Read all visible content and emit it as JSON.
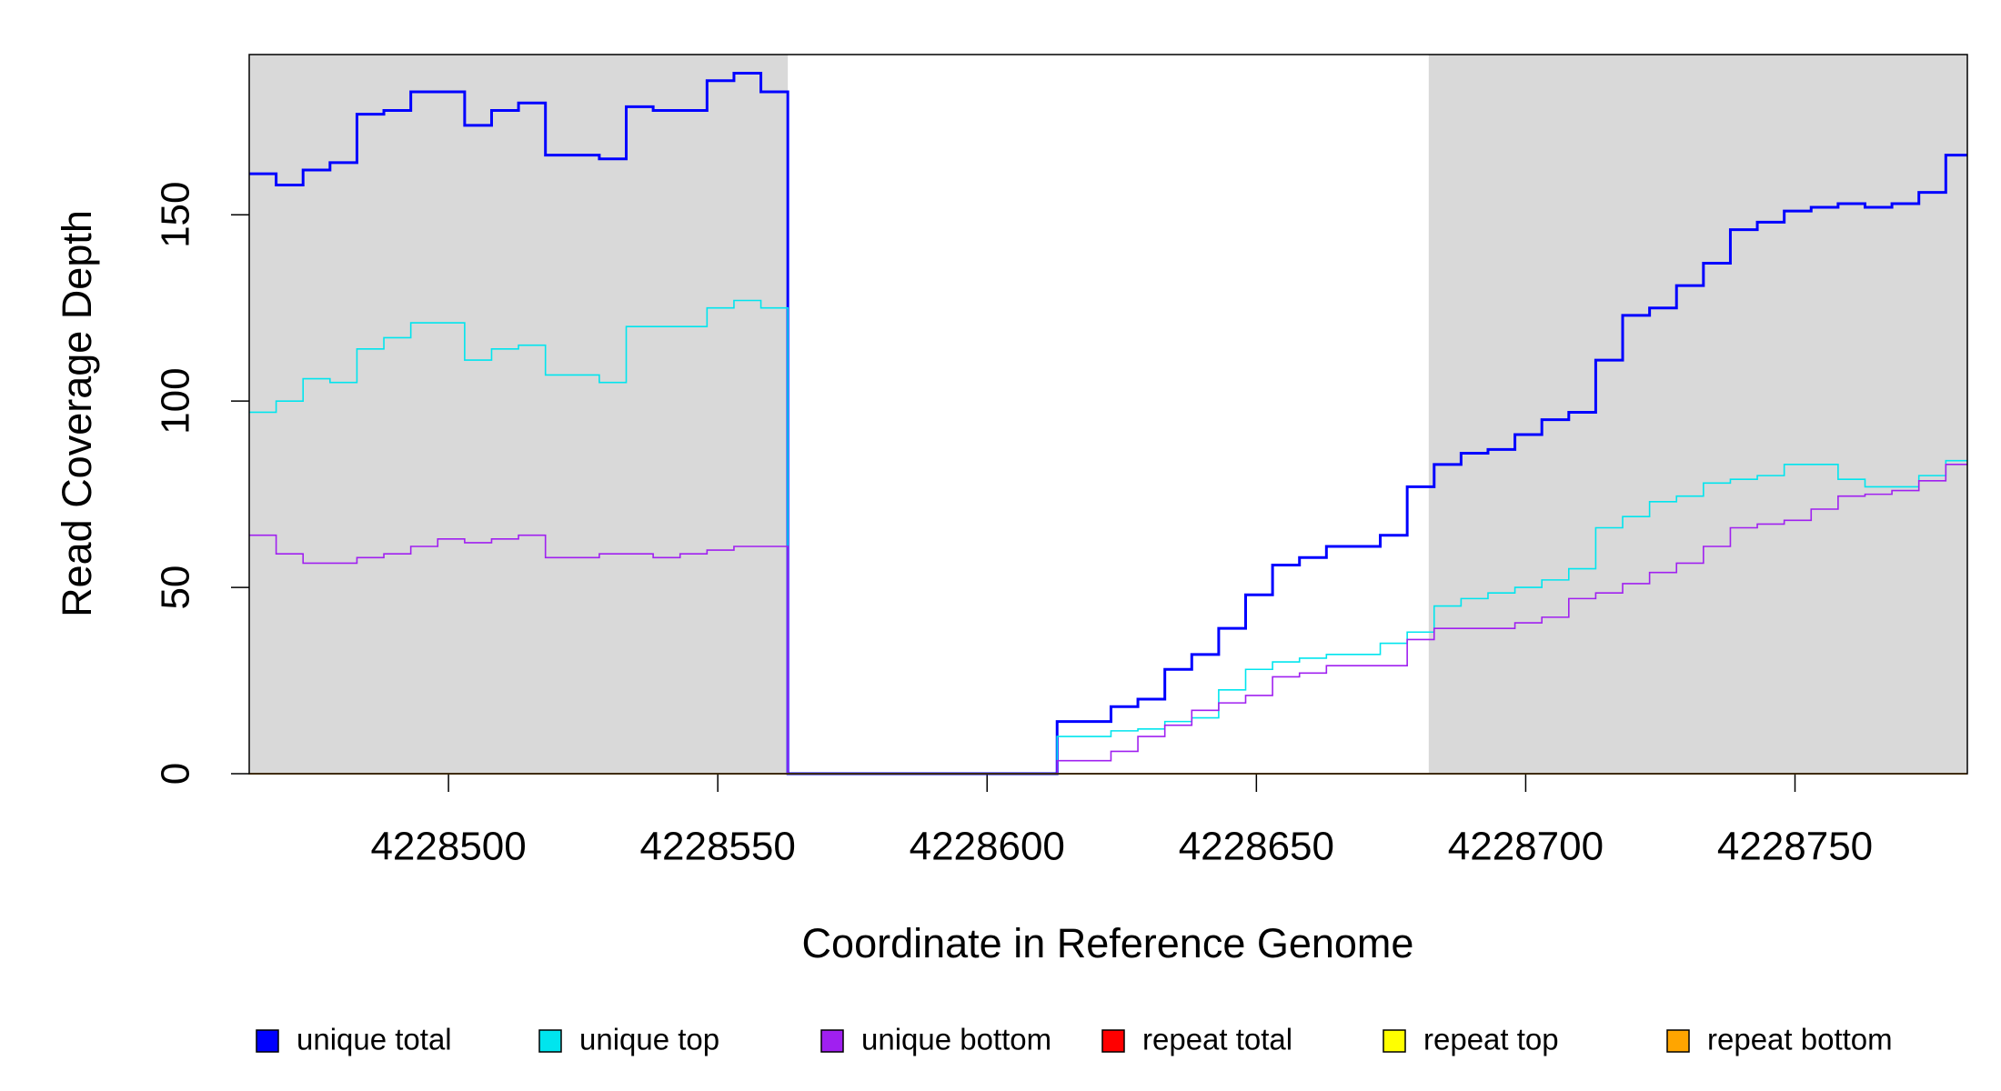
{
  "chart_data": {
    "type": "step",
    "xlabel": "Coordinate in Reference Genome",
    "ylabel": "Read Coverage Depth",
    "xlim": [
      4228463,
      4228782
    ],
    "ylim": [
      0,
      193
    ],
    "xticks": [
      4228500,
      4228550,
      4228600,
      4228650,
      4228700,
      4228750
    ],
    "yticks": [
      0,
      50,
      100,
      150
    ],
    "shaded_regions": [
      [
        4228463,
        4228563
      ],
      [
        4228682,
        4228782
      ]
    ],
    "shade_color": "#d9d9d9",
    "x": [
      4228463,
      4228468,
      4228473,
      4228478,
      4228483,
      4228488,
      4228493,
      4228498,
      4228503,
      4228508,
      4228513,
      4228518,
      4228523,
      4228528,
      4228533,
      4228538,
      4228543,
      4228548,
      4228553,
      4228558,
      4228563,
      4228568,
      4228573,
      4228578,
      4228583,
      4228588,
      4228593,
      4228598,
      4228603,
      4228608,
      4228613,
      4228618,
      4228623,
      4228628,
      4228633,
      4228638,
      4228643,
      4228648,
      4228653,
      4228658,
      4228663,
      4228668,
      4228673,
      4228678,
      4228683,
      4228688,
      4228693,
      4228698,
      4228703,
      4228708,
      4228713,
      4228718,
      4228723,
      4228728,
      4228733,
      4228738,
      4228743,
      4228748,
      4228753,
      4228758,
      4228763,
      4228768,
      4228773,
      4228778
    ],
    "series": [
      {
        "name": "unique total",
        "color": "#0000ff",
        "values": [
          161,
          158,
          162,
          164,
          177,
          178,
          183,
          183,
          174,
          178,
          180,
          166,
          166,
          165,
          179,
          178,
          178,
          186,
          188,
          183,
          0,
          0,
          0,
          0,
          0,
          0,
          0,
          0,
          0,
          0,
          14,
          14,
          18,
          20,
          28,
          32,
          39,
          48,
          56,
          58,
          61,
          61,
          64,
          77,
          83,
          86,
          87,
          91,
          95,
          97,
          111,
          123,
          125,
          131,
          137,
          146,
          148,
          151,
          152,
          153,
          152,
          153,
          156,
          166
        ]
      },
      {
        "name": "unique top",
        "color": "#00e5ee",
        "values": [
          97,
          100,
          106,
          105,
          114,
          117,
          121,
          121,
          111,
          114,
          115,
          107,
          107,
          105,
          120,
          120,
          120,
          125,
          127,
          125,
          0,
          0,
          0,
          0,
          0,
          0,
          0,
          0,
          0,
          0,
          10,
          10,
          11.5,
          12,
          14,
          15,
          22.5,
          28,
          30,
          31,
          32,
          32,
          35,
          38,
          45,
          47,
          48.5,
          50,
          52,
          55,
          66,
          69,
          73,
          74.5,
          78,
          79,
          80,
          83,
          83,
          79,
          77,
          77,
          80,
          84
        ]
      },
      {
        "name": "unique bottom",
        "color": "#a020f0",
        "values": [
          64,
          59,
          56.5,
          56.5,
          58,
          59,
          61,
          63,
          62,
          63,
          64,
          58,
          58,
          59,
          59,
          58,
          59,
          60,
          61,
          61,
          0,
          0,
          0,
          0,
          0,
          0,
          0,
          0,
          0,
          0,
          3.5,
          3.5,
          6,
          10,
          13,
          17,
          19,
          21,
          26,
          27,
          29,
          29,
          29,
          36,
          39,
          39,
          39,
          40.5,
          42,
          47,
          48.5,
          51,
          54,
          56.5,
          61,
          66,
          67,
          68,
          71,
          74.5,
          75,
          76,
          78.6,
          83
        ]
      },
      {
        "name": "repeat total",
        "color": "#ff0000",
        "values": [
          0,
          0,
          0,
          0,
          0,
          0,
          0,
          0,
          0,
          0,
          0,
          0,
          0,
          0,
          0,
          0,
          0,
          0,
          0,
          0,
          0,
          0,
          0,
          0,
          0,
          0,
          0,
          0,
          0,
          0,
          0,
          0,
          0,
          0,
          0,
          0,
          0,
          0,
          0,
          0,
          0,
          0,
          0,
          0,
          0,
          0,
          0,
          0,
          0,
          0,
          0,
          0,
          0,
          0,
          0,
          0,
          0,
          0,
          0,
          0,
          0,
          0,
          0,
          0
        ]
      },
      {
        "name": "repeat top",
        "color": "#ffff00",
        "values": [
          0,
          0,
          0,
          0,
          0,
          0,
          0,
          0,
          0,
          0,
          0,
          0,
          0,
          0,
          0,
          0,
          0,
          0,
          0,
          0,
          0,
          0,
          0,
          0,
          0,
          0,
          0,
          0,
          0,
          0,
          0,
          0,
          0,
          0,
          0,
          0,
          0,
          0,
          0,
          0,
          0,
          0,
          0,
          0,
          0,
          0,
          0,
          0,
          0,
          0,
          0,
          0,
          0,
          0,
          0,
          0,
          0,
          0,
          0,
          0,
          0,
          0,
          0,
          0
        ]
      },
      {
        "name": "repeat bottom",
        "color": "#ffa500",
        "values": [
          0,
          0,
          0,
          0,
          0,
          0,
          0,
          0,
          0,
          0,
          0,
          0,
          0,
          0,
          0,
          0,
          0,
          0,
          0,
          0,
          0,
          0,
          0,
          0,
          0,
          0,
          0,
          0,
          0,
          0,
          0,
          0,
          0,
          0,
          0,
          0,
          0,
          0,
          0,
          0,
          0,
          0,
          0,
          0,
          0,
          0,
          0,
          0,
          0,
          0,
          0,
          0,
          0,
          0,
          0,
          0,
          0,
          0,
          0,
          0,
          0,
          0,
          0,
          0
        ]
      }
    ]
  }
}
